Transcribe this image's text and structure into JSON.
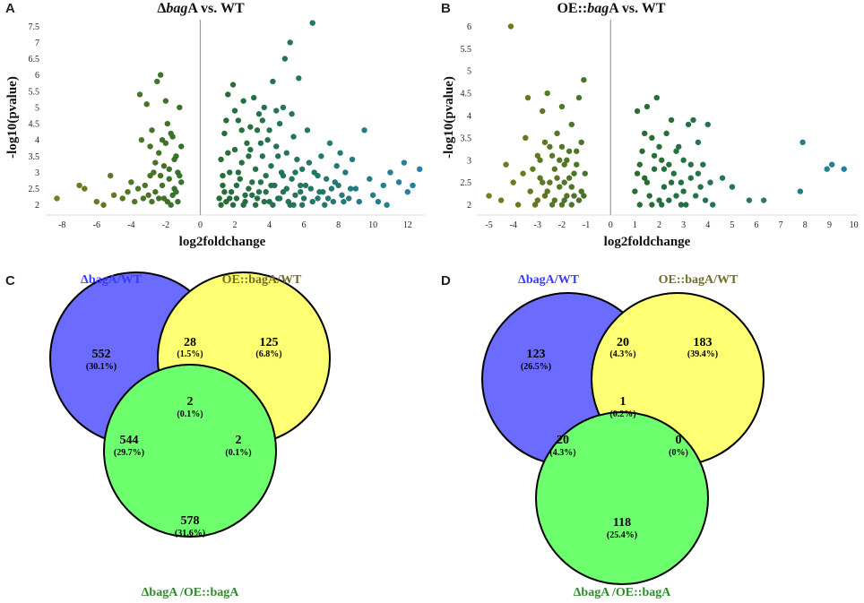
{
  "panel_letters": {
    "a": "A",
    "b": "B",
    "c": "C",
    "d": "D"
  },
  "chart_data": [
    {
      "type": "scatter",
      "panel": "A",
      "title_prefix": "Δ",
      "title_italic": "bag",
      "title_suffix": "A vs. WT",
      "xlabel": "log2foldchange",
      "ylabel": "-log10(pvalue)",
      "xlim": [
        -9,
        13
      ],
      "ylim": [
        1.8,
        7.7
      ],
      "xticks": [
        -8,
        -6,
        -4,
        -2,
        0,
        2,
        4,
        6,
        8,
        10,
        12
      ],
      "yticks": [
        2,
        2.5,
        3,
        3.5,
        4,
        4.5,
        5,
        5.5,
        6,
        6.5,
        7,
        7.5
      ],
      "points": [
        [
          -8.3,
          2.2
        ],
        [
          -7.0,
          2.6
        ],
        [
          -6.7,
          2.5
        ],
        [
          -6.0,
          2.1
        ],
        [
          -5.6,
          2.0
        ],
        [
          -5.2,
          2.9
        ],
        [
          -5.0,
          2.3
        ],
        [
          -4.5,
          2.2
        ],
        [
          -4.2,
          2.4
        ],
        [
          -4.0,
          2.7
        ],
        [
          -3.8,
          2.1
        ],
        [
          -3.6,
          2.5
        ],
        [
          -3.5,
          5.4
        ],
        [
          -3.3,
          2.2
        ],
        [
          -3.1,
          5.1
        ],
        [
          -3.0,
          2.3
        ],
        [
          -2.9,
          2.9
        ],
        [
          -2.8,
          2.1
        ],
        [
          -2.7,
          3.0
        ],
        [
          -2.6,
          2.4
        ],
        [
          -2.5,
          5.8
        ],
        [
          -2.4,
          2.2
        ],
        [
          -2.3,
          6.0
        ],
        [
          -2.2,
          2.6
        ],
        [
          -2.1,
          3.2
        ],
        [
          -2.0,
          5.2
        ],
        [
          -1.9,
          2.1
        ],
        [
          -1.8,
          2.8
        ],
        [
          -1.7,
          4.2
        ],
        [
          -1.6,
          2.3
        ],
        [
          -1.5,
          2.5
        ],
        [
          -1.4,
          3.5
        ],
        [
          -1.3,
          2.1
        ],
        [
          -1.2,
          5.0
        ],
        [
          -1.1,
          2.7
        ],
        [
          -3.2,
          2.6
        ],
        [
          -2.6,
          3.3
        ],
        [
          -2.4,
          3.6
        ],
        [
          -2.2,
          4.0
        ],
        [
          -2.0,
          3.9
        ],
        [
          -1.9,
          4.5
        ],
        [
          -1.8,
          3.1
        ],
        [
          -1.6,
          4.1
        ],
        [
          -1.5,
          3.4
        ],
        [
          -1.3,
          3.0
        ],
        [
          -3.4,
          4.0
        ],
        [
          -2.8,
          4.3
        ],
        [
          -2.1,
          2.2
        ],
        [
          -1.7,
          2.0
        ],
        [
          -1.4,
          2.4
        ],
        [
          -1.2,
          2.9
        ],
        [
          -2.9,
          3.8
        ],
        [
          -2.3,
          2.9
        ],
        [
          -1.1,
          3.8
        ],
        [
          1.1,
          2.2
        ],
        [
          1.2,
          3.4
        ],
        [
          1.3,
          2.6
        ],
        [
          1.4,
          4.2
        ],
        [
          1.5,
          2.1
        ],
        [
          1.6,
          5.4
        ],
        [
          1.7,
          3.0
        ],
        [
          1.8,
          2.4
        ],
        [
          1.9,
          5.7
        ],
        [
          2.0,
          3.7
        ],
        [
          2.1,
          2.2
        ],
        [
          2.2,
          4.6
        ],
        [
          2.3,
          2.8
        ],
        [
          2.4,
          3.3
        ],
        [
          2.5,
          5.2
        ],
        [
          2.6,
          2.1
        ],
        [
          2.7,
          3.9
        ],
        [
          2.8,
          2.5
        ],
        [
          2.9,
          4.4
        ],
        [
          3.0,
          2.3
        ],
        [
          3.1,
          5.3
        ],
        [
          3.2,
          3.1
        ],
        [
          3.3,
          2.2
        ],
        [
          3.4,
          4.8
        ],
        [
          3.5,
          2.7
        ],
        [
          3.6,
          3.5
        ],
        [
          3.7,
          5.0
        ],
        [
          3.8,
          2.4
        ],
        [
          3.9,
          4.0
        ],
        [
          4.0,
          2.1
        ],
        [
          4.1,
          3.2
        ],
        [
          4.2,
          5.8
        ],
        [
          4.3,
          2.6
        ],
        [
          4.4,
          3.8
        ],
        [
          4.5,
          2.2
        ],
        [
          4.6,
          4.5
        ],
        [
          4.7,
          3.0
        ],
        [
          4.8,
          2.4
        ],
        [
          4.9,
          6.5
        ],
        [
          5.0,
          3.6
        ],
        [
          5.1,
          2.1
        ],
        [
          5.2,
          7.0
        ],
        [
          5.3,
          2.8
        ],
        [
          5.4,
          4.1
        ],
        [
          5.5,
          2.3
        ],
        [
          5.6,
          3.4
        ],
        [
          5.7,
          5.9
        ],
        [
          5.8,
          2.6
        ],
        [
          5.9,
          3.1
        ],
        [
          6.0,
          2.2
        ],
        [
          6.2,
          4.3
        ],
        [
          6.4,
          2.5
        ],
        [
          6.5,
          7.6
        ],
        [
          6.6,
          3.0
        ],
        [
          6.8,
          2.2
        ],
        [
          7.0,
          3.5
        ],
        [
          7.1,
          2.4
        ],
        [
          7.3,
          2.8
        ],
        [
          7.5,
          3.9
        ],
        [
          7.7,
          2.1
        ],
        [
          7.9,
          3.2
        ],
        [
          8.0,
          2.6
        ],
        [
          8.2,
          2.3
        ],
        [
          8.4,
          3.0
        ],
        [
          8.6,
          2.2
        ],
        [
          8.8,
          3.4
        ],
        [
          9.0,
          2.5
        ],
        [
          9.2,
          2.1
        ],
        [
          9.5,
          4.3
        ],
        [
          9.8,
          2.8
        ],
        [
          10.0,
          2.3
        ],
        [
          10.3,
          2.1
        ],
        [
          10.6,
          2.6
        ],
        [
          10.8,
          2.0
        ],
        [
          11.0,
          3.0
        ],
        [
          11.5,
          2.7
        ],
        [
          11.8,
          3.3
        ],
        [
          12.0,
          2.4
        ],
        [
          12.3,
          2.6
        ],
        [
          12.7,
          3.1
        ],
        [
          1.3,
          2.9
        ],
        [
          1.6,
          3.6
        ],
        [
          1.9,
          2.0
        ],
        [
          2.2,
          3.0
        ],
        [
          2.5,
          2.0
        ],
        [
          2.8,
          3.5
        ],
        [
          3.2,
          2.0
        ],
        [
          3.5,
          3.9
        ],
        [
          3.8,
          2.9
        ],
        [
          4.2,
          2.0
        ],
        [
          4.5,
          3.5
        ],
        [
          4.8,
          2.9
        ],
        [
          5.2,
          2.0
        ],
        [
          5.5,
          3.0
        ],
        [
          5.9,
          2.0
        ],
        [
          6.3,
          3.3
        ],
        [
          6.8,
          2.9
        ],
        [
          7.2,
          2.0
        ],
        [
          7.6,
          2.5
        ],
        [
          8.1,
          3.6
        ],
        [
          1.5,
          4.6
        ],
        [
          2.0,
          4.9
        ],
        [
          2.4,
          4.3
        ],
        [
          2.9,
          3.7
        ],
        [
          3.3,
          4.3
        ],
        [
          3.6,
          4.6
        ],
        [
          4.0,
          4.3
        ],
        [
          4.4,
          4.9
        ],
        [
          4.8,
          5.0
        ],
        [
          5.3,
          4.8
        ],
        [
          1.2,
          2.0
        ],
        [
          1.4,
          2.4
        ],
        [
          1.7,
          2.2
        ],
        [
          2.1,
          2.6
        ],
        [
          2.6,
          2.3
        ],
        [
          3.0,
          2.7
        ],
        [
          3.4,
          2.4
        ],
        [
          3.7,
          2.1
        ],
        [
          4.1,
          2.6
        ],
        [
          4.6,
          2.2
        ],
        [
          5.0,
          2.5
        ],
        [
          5.4,
          2.0
        ],
        [
          5.8,
          2.4
        ],
        [
          6.1,
          2.6
        ],
        [
          6.5,
          2.1
        ],
        [
          6.9,
          2.4
        ],
        [
          7.4,
          2.2
        ],
        [
          7.8,
          2.7
        ],
        [
          8.3,
          2.1
        ],
        [
          8.7,
          2.5
        ]
      ]
    },
    {
      "type": "scatter",
      "panel": "B",
      "title_prefix": "OE::",
      "title_italic": "bag",
      "title_suffix": "A vs. WT",
      "xlabel": "log2foldchange",
      "ylabel": "-log10(pvalue)",
      "xlim": [
        -5.5,
        10.2
      ],
      "ylim": [
        1.85,
        6.15
      ],
      "xticks": [
        -5,
        -4,
        -3,
        -2,
        -1,
        0,
        1,
        2,
        3,
        4,
        5,
        6,
        7,
        8,
        9,
        10
      ],
      "yticks": [
        2,
        2.5,
        3,
        3.5,
        4,
        4.5,
        5,
        5.5,
        6
      ],
      "points": [
        [
          -5.0,
          2.2
        ],
        [
          -4.5,
          2.1
        ],
        [
          -4.3,
          2.9
        ],
        [
          -4.1,
          6.0
        ],
        [
          -4.0,
          2.5
        ],
        [
          -3.8,
          2.0
        ],
        [
          -3.6,
          2.7
        ],
        [
          -3.5,
          3.5
        ],
        [
          -3.4,
          4.4
        ],
        [
          -3.3,
          2.3
        ],
        [
          -3.1,
          2.0
        ],
        [
          -3.0,
          3.1
        ],
        [
          -2.9,
          2.6
        ],
        [
          -2.8,
          4.1
        ],
        [
          -2.7,
          2.2
        ],
        [
          -2.6,
          4.5
        ],
        [
          -2.5,
          3.3
        ],
        [
          -2.4,
          2.0
        ],
        [
          -2.3,
          2.8
        ],
        [
          -2.2,
          3.6
        ],
        [
          -2.1,
          2.4
        ],
        [
          -2.0,
          4.2
        ],
        [
          -1.9,
          2.1
        ],
        [
          -1.8,
          3.0
        ],
        [
          -1.7,
          2.6
        ],
        [
          -1.6,
          3.8
        ],
        [
          -1.5,
          2.2
        ],
        [
          -1.4,
          2.9
        ],
        [
          -1.3,
          4.4
        ],
        [
          -1.2,
          2.3
        ],
        [
          -1.1,
          4.8
        ],
        [
          -1.05,
          2.7
        ],
        [
          -3.2,
          2.8
        ],
        [
          -2.9,
          3.0
        ],
        [
          -2.6,
          2.3
        ],
        [
          -2.4,
          3.1
        ],
        [
          -2.2,
          2.6
        ],
        [
          -2.0,
          3.3
        ],
        [
          -1.9,
          2.9
        ],
        [
          -1.7,
          3.2
        ],
        [
          -1.6,
          2.4
        ],
        [
          -1.4,
          3.2
        ],
        [
          -1.3,
          2.1
        ],
        [
          -1.2,
          3.4
        ],
        [
          -2.7,
          3.4
        ],
        [
          -2.1,
          3.0
        ],
        [
          -1.8,
          2.2
        ],
        [
          -2.5,
          2.5
        ],
        [
          -1.5,
          2.7
        ],
        [
          -3.0,
          2.1
        ],
        [
          -2.3,
          2.1
        ],
        [
          -1.9,
          2.5
        ],
        [
          -1.6,
          2.0
        ],
        [
          -2.8,
          2.5
        ],
        [
          -1.1,
          2.2
        ],
        [
          -2.0,
          2.0
        ],
        [
          1.0,
          2.3
        ],
        [
          1.1,
          4.1
        ],
        [
          1.2,
          2.0
        ],
        [
          1.3,
          3.2
        ],
        [
          1.4,
          2.6
        ],
        [
          1.5,
          4.2
        ],
        [
          1.6,
          2.2
        ],
        [
          1.7,
          3.5
        ],
        [
          1.8,
          2.8
        ],
        [
          1.9,
          4.4
        ],
        [
          2.0,
          2.1
        ],
        [
          2.1,
          3.0
        ],
        [
          2.2,
          2.4
        ],
        [
          2.3,
          3.6
        ],
        [
          2.4,
          2.1
        ],
        [
          2.5,
          3.9
        ],
        [
          2.6,
          2.7
        ],
        [
          2.7,
          2.2
        ],
        [
          2.8,
          3.3
        ],
        [
          2.9,
          2.5
        ],
        [
          3.0,
          3.0
        ],
        [
          3.1,
          2.0
        ],
        [
          3.2,
          3.8
        ],
        [
          3.3,
          2.6
        ],
        [
          3.4,
          3.9
        ],
        [
          3.5,
          2.2
        ],
        [
          3.6,
          3.4
        ],
        [
          3.7,
          2.4
        ],
        [
          3.8,
          2.9
        ],
        [
          3.9,
          2.1
        ],
        [
          4.0,
          3.8
        ],
        [
          4.1,
          2.5
        ],
        [
          4.2,
          2.0
        ],
        [
          4.6,
          2.6
        ],
        [
          5.0,
          2.4
        ],
        [
          5.7,
          2.1
        ],
        [
          6.3,
          2.1
        ],
        [
          7.8,
          2.3
        ],
        [
          7.9,
          3.4
        ],
        [
          8.9,
          2.8
        ],
        [
          9.1,
          2.9
        ],
        [
          9.6,
          2.8
        ],
        [
          1.2,
          2.9
        ],
        [
          1.5,
          2.5
        ],
        [
          1.8,
          3.1
        ],
        [
          2.1,
          2.0
        ],
        [
          2.4,
          2.9
        ],
        [
          2.7,
          3.2
        ],
        [
          3.0,
          2.3
        ],
        [
          3.3,
          2.9
        ],
        [
          1.4,
          3.6
        ],
        [
          2.0,
          3.3
        ],
        [
          2.5,
          2.5
        ],
        [
          3.6,
          2.7
        ],
        [
          1.7,
          2.0
        ],
        [
          2.9,
          2.0
        ],
        [
          1.1,
          2.7
        ],
        [
          2.2,
          2.8
        ]
      ]
    },
    {
      "type": "venn",
      "panel": "C",
      "sets": [
        "ΔbagA/WT",
        "OE::bagA/WT",
        "ΔbagA /OE::bagA"
      ],
      "colors": [
        "#6b6bff",
        "#ffff73",
        "#6dff6d"
      ],
      "label_colors": [
        "#3a3aff",
        "#6e6e2a",
        "#2d8a2d"
      ],
      "regions": {
        "only_1": {
          "count": "552",
          "pct": "(30.1%)"
        },
        "1_2": {
          "count": "28",
          "pct": "(1.5%)"
        },
        "only_2": {
          "count": "125",
          "pct": "(6.8%)"
        },
        "1_2_3": {
          "count": "2",
          "pct": "(0.1%)"
        },
        "1_3": {
          "count": "544",
          "pct": "(29.7%)"
        },
        "2_3": {
          "count": "2",
          "pct": "(0.1%)"
        },
        "only_3": {
          "count": "578",
          "pct": "(31.6%)"
        }
      }
    },
    {
      "type": "venn",
      "panel": "D",
      "sets": [
        "ΔbagA/WT",
        "OE::bagA/WT",
        "ΔbagA /OE::bagA"
      ],
      "colors": [
        "#6b6bff",
        "#ffff73",
        "#6dff6d"
      ],
      "label_colors": [
        "#3a3aff",
        "#6e6e2a",
        "#2d8a2d"
      ],
      "regions": {
        "only_1": {
          "count": "123",
          "pct": "(26.5%)"
        },
        "1_2": {
          "count": "20",
          "pct": "(4.3%)"
        },
        "only_2": {
          "count": "183",
          "pct": "(39.4%)"
        },
        "1_2_3": {
          "count": "1",
          "pct": "(0.2%)"
        },
        "1_3": {
          "count": "20",
          "pct": "(4.3%)"
        },
        "2_3": {
          "count": "0",
          "pct": "(0%)"
        },
        "only_3": {
          "count": "118",
          "pct": "(25.4%)"
        }
      }
    }
  ]
}
